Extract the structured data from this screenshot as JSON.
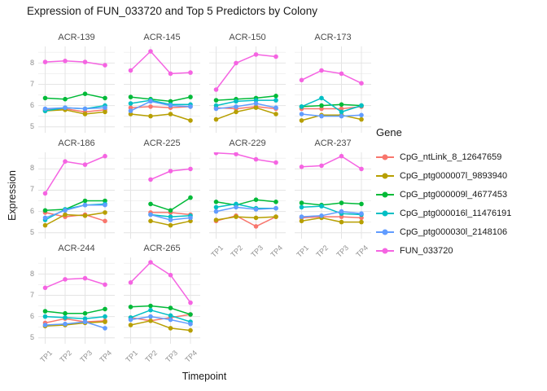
{
  "title": "Expression of FUN_033720 and Top 5 Predictors by Colony",
  "axes": {
    "x_label": "Timepoint",
    "y_label": "Expression",
    "x_ticks": [
      "TP1",
      "TP2",
      "TP3",
      "TP4"
    ],
    "y_ticks": [
      5,
      6,
      7,
      8
    ]
  },
  "legend": {
    "title": "Gene"
  },
  "colors": {
    "background": "#FFFFFF",
    "grid_major": "#E4E4E4",
    "grid_minor": "#F1F1F1",
    "tick_text": "#8E8E8E",
    "facet_title_text": "#4A4A4A"
  },
  "chart_data": {
    "type": "line",
    "title": "Expression of FUN_033720 and Top 5 Predictors by Colony",
    "xlabel": "Timepoint",
    "ylabel": "Expression",
    "categories": [
      "TP1",
      "TP2",
      "TP3",
      "TP4"
    ],
    "y_ticks": [
      5,
      6,
      7,
      8
    ],
    "y_minor_ticks": [
      5.5,
      6.5,
      7.5,
      8.5
    ],
    "ylim": [
      4.72,
      8.78
    ],
    "grid": true,
    "legend_position": "right",
    "legend_title": "Gene",
    "series": [
      {
        "name": "CpG_ntLink_8_12647659",
        "color": "#F8766D"
      },
      {
        "name": "CpG_ptg000007l_9893940",
        "color": "#B79F00"
      },
      {
        "name": "CpG_ptg000009l_4677453",
        "color": "#00BA38"
      },
      {
        "name": "CpG_ptg000016l_11476191",
        "color": "#00BFC4"
      },
      {
        "name": "CpG_ptg000030l_2148106",
        "color": "#619CFF"
      },
      {
        "name": "FUN_033720",
        "color": "#F564E2"
      }
    ],
    "facets": [
      {
        "name": "ACR-139",
        "values": [
          [
            5.8,
            5.85,
            5.7,
            5.8
          ],
          [
            5.75,
            5.8,
            5.6,
            5.7
          ],
          [
            6.35,
            6.3,
            6.55,
            6.35
          ],
          [
            5.75,
            5.9,
            5.85,
            6.0
          ],
          [
            5.85,
            5.9,
            5.85,
            5.9
          ],
          [
            8.05,
            8.1,
            8.05,
            7.9
          ]
        ]
      },
      {
        "name": "ACR-145",
        "values": [
          [
            5.9,
            5.95,
            5.9,
            5.95
          ],
          [
            5.6,
            5.5,
            5.6,
            5.3
          ],
          [
            6.4,
            6.3,
            6.2,
            6.4
          ],
          [
            6.1,
            6.25,
            6.05,
            6.05
          ],
          [
            5.75,
            6.2,
            6.0,
            5.95
          ],
          [
            7.65,
            8.55,
            7.5,
            7.55
          ]
        ]
      },
      {
        "name": "ACR-150",
        "values": [
          [
            5.9,
            5.85,
            5.95,
            5.85
          ],
          [
            5.35,
            5.7,
            5.9,
            5.6
          ],
          [
            6.25,
            6.3,
            6.35,
            6.45
          ],
          [
            6.0,
            6.2,
            6.25,
            6.25
          ],
          [
            5.85,
            5.95,
            6.1,
            5.9
          ],
          [
            6.75,
            8.0,
            8.4,
            8.3
          ]
        ]
      },
      {
        "name": "ACR-173",
        "values": [
          [
            5.85,
            5.85,
            5.85,
            5.95
          ],
          [
            5.3,
            5.55,
            5.55,
            5.35
          ],
          [
            5.95,
            6.0,
            6.05,
            6.0
          ],
          [
            5.95,
            6.35,
            5.7,
            6.0
          ],
          [
            5.6,
            5.5,
            5.5,
            5.55
          ],
          [
            7.2,
            7.65,
            7.5,
            7.05
          ]
        ]
      },
      {
        "name": "ACR-186",
        "values": [
          [
            5.95,
            5.75,
            5.85,
            5.55
          ],
          [
            5.35,
            5.85,
            5.8,
            5.95
          ],
          [
            6.05,
            6.1,
            6.5,
            6.5
          ],
          [
            5.6,
            6.1,
            6.3,
            6.35
          ],
          [
            5.7,
            6.05,
            6.3,
            6.3
          ],
          [
            6.85,
            8.35,
            8.2,
            8.6
          ]
        ]
      },
      {
        "name": "ACR-225",
        "values": [
          [
            null,
            5.95,
            5.95,
            5.85
          ],
          [
            null,
            5.55,
            5.35,
            5.55
          ],
          [
            null,
            6.35,
            6.05,
            6.65
          ],
          [
            null,
            5.85,
            5.75,
            5.8
          ],
          [
            null,
            5.85,
            5.6,
            5.7
          ],
          [
            null,
            7.5,
            7.9,
            8.0
          ]
        ]
      },
      {
        "name": "ACR-229",
        "values": [
          [
            5.55,
            5.8,
            5.3,
            5.75
          ],
          [
            5.6,
            5.75,
            5.7,
            5.75
          ],
          [
            6.45,
            6.3,
            6.55,
            6.45
          ],
          [
            6.2,
            6.35,
            6.15,
            6.15
          ],
          [
            6.0,
            6.2,
            6.1,
            6.15
          ],
          [
            8.75,
            8.7,
            8.45,
            8.3
          ]
        ]
      },
      {
        "name": "ACR-237",
        "values": [
          [
            5.7,
            5.75,
            5.75,
            5.7
          ],
          [
            5.55,
            5.7,
            5.5,
            5.5
          ],
          [
            6.4,
            6.3,
            6.4,
            6.35
          ],
          [
            6.2,
            6.25,
            5.9,
            5.85
          ],
          [
            5.75,
            5.8,
            6.0,
            5.9
          ],
          [
            8.1,
            8.15,
            8.6,
            8.0
          ]
        ]
      },
      {
        "name": "ACR-244",
        "values": [
          [
            5.7,
            5.9,
            5.75,
            5.8
          ],
          [
            5.55,
            5.6,
            5.7,
            5.75
          ],
          [
            6.25,
            6.15,
            6.15,
            6.35
          ],
          [
            6.0,
            5.95,
            5.9,
            6.0
          ],
          [
            5.6,
            5.65,
            5.75,
            5.45
          ],
          [
            7.35,
            7.75,
            7.8,
            7.5
          ]
        ]
      },
      {
        "name": "ACR-265",
        "values": [
          [
            5.95,
            5.8,
            5.95,
            6.1
          ],
          [
            5.6,
            5.8,
            5.45,
            5.35
          ],
          [
            6.45,
            6.5,
            6.4,
            6.1
          ],
          [
            5.95,
            6.3,
            6.05,
            5.75
          ],
          [
            5.85,
            6.0,
            5.85,
            5.65
          ],
          [
            7.6,
            8.55,
            7.95,
            6.65
          ]
        ]
      }
    ]
  }
}
